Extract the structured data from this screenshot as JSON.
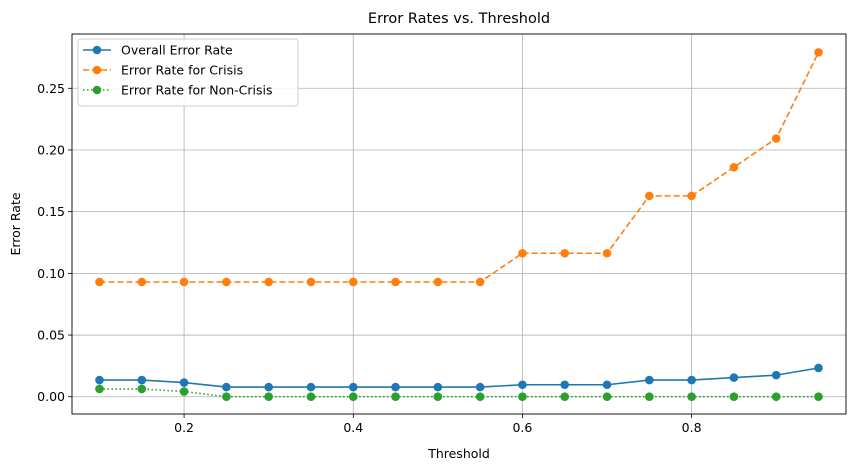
{
  "chart_data": {
    "type": "line",
    "title": "Error Rates vs. Threshold",
    "xlabel": "Threshold",
    "ylabel": "Error Rate",
    "xlim": [
      0.0675,
      0.9825
    ],
    "ylim": [
      -0.014,
      0.294
    ],
    "x_ticks": [
      0.2,
      0.4,
      0.6,
      0.8
    ],
    "x_tick_labels": [
      "0.2",
      "0.4",
      "0.6",
      "0.8"
    ],
    "y_ticks": [
      0.0,
      0.05,
      0.1,
      0.15,
      0.2,
      0.25
    ],
    "y_tick_labels": [
      "0.00",
      "0.05",
      "0.10",
      "0.15",
      "0.20",
      "0.25"
    ],
    "grid": true,
    "legend_position": "upper-left",
    "x": [
      0.1,
      0.15,
      0.2,
      0.25,
      0.3,
      0.35,
      0.4,
      0.45,
      0.5,
      0.55,
      0.6,
      0.65,
      0.7,
      0.75,
      0.8,
      0.85,
      0.9,
      0.95
    ],
    "series": [
      {
        "name": "Overall Error Rate",
        "color": "#1f77b4",
        "linestyle": "solid",
        "values": [
          0.0135,
          0.0135,
          0.0115,
          0.0078,
          0.0078,
          0.0078,
          0.0078,
          0.0078,
          0.0078,
          0.0078,
          0.0097,
          0.0097,
          0.0097,
          0.0135,
          0.0135,
          0.0155,
          0.0175,
          0.0233
        ]
      },
      {
        "name": "Error Rate for Crisis",
        "color": "#ff7f0e",
        "linestyle": "dashed",
        "values": [
          0.093,
          0.093,
          0.093,
          0.093,
          0.093,
          0.093,
          0.093,
          0.093,
          0.093,
          0.093,
          0.1163,
          0.1163,
          0.1163,
          0.1628,
          0.1628,
          0.186,
          0.2093,
          0.2791
        ]
      },
      {
        "name": "Error Rate for Non-Crisis",
        "color": "#2ca02c",
        "linestyle": "dotted",
        "values": [
          0.0063,
          0.0063,
          0.0042,
          0.0,
          0.0,
          0.0,
          0.0,
          0.0,
          0.0,
          0.0,
          0.0,
          0.0,
          0.0,
          0.0,
          0.0,
          0.0,
          0.0,
          0.0
        ]
      }
    ]
  }
}
